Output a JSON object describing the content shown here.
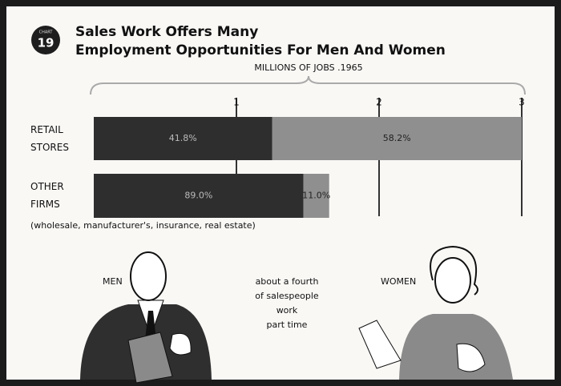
{
  "chart_data": {
    "type": "stacked-barh",
    "chart_label": "CHART",
    "chart_number": "19",
    "title": [
      "Sales Work Offers Many",
      "Employment Opportunities For Men And Women"
    ],
    "subtitle": "MILLIONS OF JOBS .1965",
    "categories": [
      "RETAIL STORES",
      "OTHER FIRMS"
    ],
    "series": [
      {
        "name": "MEN",
        "color": "#2e2e2e",
        "values": [
          1.25,
          1.47
        ],
        "share_labels": [
          "41.8%",
          "89.0%"
        ]
      },
      {
        "name": "WOMEN",
        "color": "#8f8f8f",
        "values": [
          1.75,
          0.18
        ],
        "share_labels": [
          "58.2%",
          "11.0%"
        ]
      }
    ],
    "xlim": [
      0,
      3
    ],
    "xticks": [
      1,
      2,
      3
    ],
    "note": "(wholesale, manufacturer's, insurance, real estate)",
    "annotation": [
      "about a fourth",
      "of salespeople",
      "work",
      "part time"
    ]
  }
}
